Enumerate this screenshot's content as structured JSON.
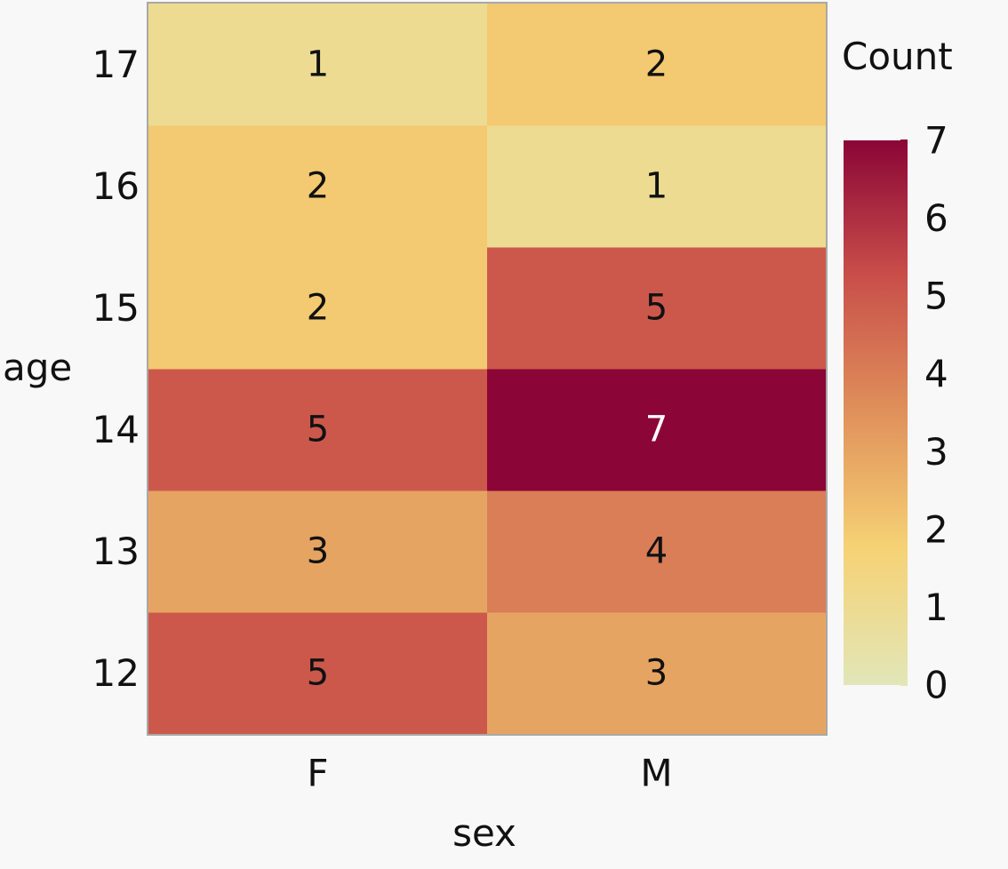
{
  "chart_data": {
    "type": "heatmap",
    "xlabel": "sex",
    "ylabel": "age",
    "x_categories": [
      "F",
      "M"
    ],
    "y_categories": [
      "12",
      "13",
      "14",
      "15",
      "16",
      "17"
    ],
    "values": [
      [
        5,
        3
      ],
      [
        3,
        4
      ],
      [
        5,
        7
      ],
      [
        2,
        5
      ],
      [
        2,
        1
      ],
      [
        1,
        2
      ]
    ],
    "legend": {
      "title": "Count",
      "position": "right",
      "range": [
        0,
        7
      ],
      "ticks": [
        "0",
        "1",
        "2",
        "3",
        "4",
        "5",
        "6",
        "7"
      ]
    },
    "colors": {
      "scale": [
        "#e2e6b8",
        "#f6d275",
        "#e0915b",
        "#c94f4a",
        "#8b0537"
      ],
      "background": "#f8f8f8",
      "frame": "#a8a8a8"
    }
  }
}
